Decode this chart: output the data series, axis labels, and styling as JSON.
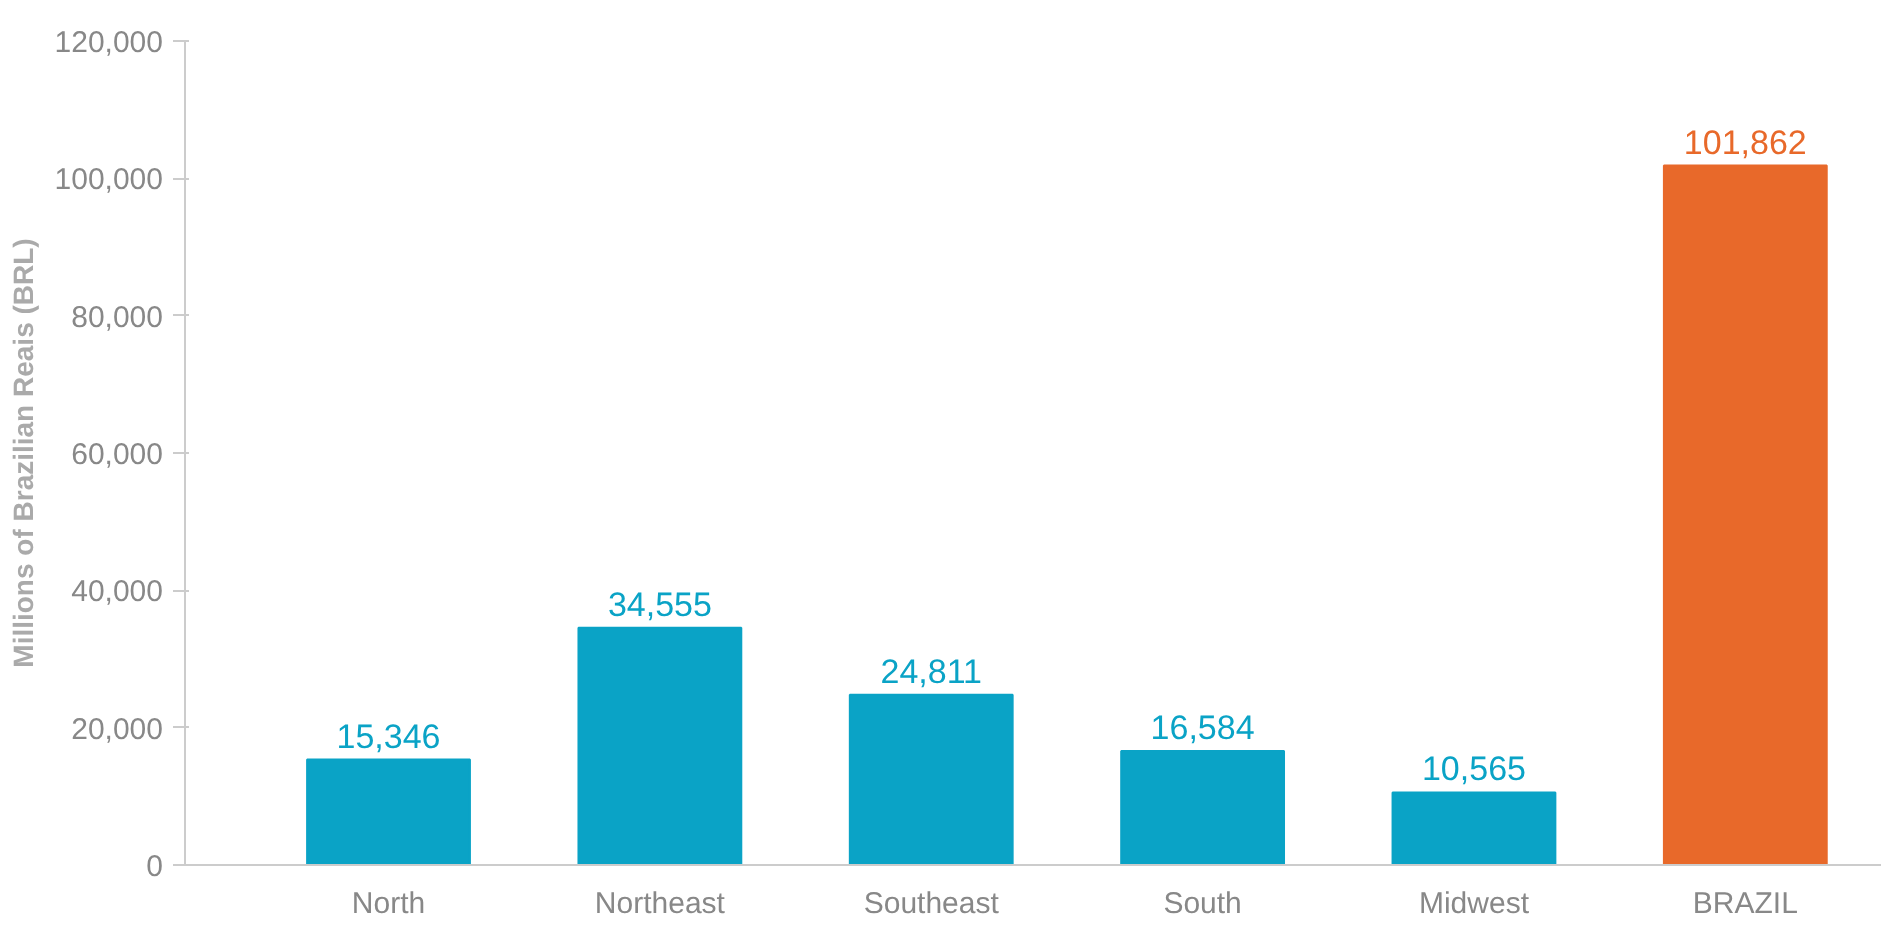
{
  "chart_data": {
    "type": "bar",
    "ylabel": "Millions of Brazilian Reais (BRL)",
    "categories": [
      "North",
      "Northeast",
      "Southeast",
      "South",
      "Midwest",
      "BRAZIL"
    ],
    "values": [
      15346,
      34555,
      24811,
      16584,
      10565,
      101862
    ],
    "colors": [
      "#0aa3c6",
      "#0aa3c6",
      "#0aa3c6",
      "#0aa3c6",
      "#0aa3c6",
      "#e8692a"
    ],
    "ylim": [
      0,
      120000
    ],
    "yticks": [
      {
        "value": 0,
        "label": "0"
      },
      {
        "value": 20000,
        "label": "20,000"
      },
      {
        "value": 40000,
        "label": "40,000"
      },
      {
        "value": 60000,
        "label": "60,000"
      },
      {
        "value": 80000,
        "label": "80,000"
      },
      {
        "value": 100000,
        "label": "100,000"
      },
      {
        "value": 120000,
        "label": "120,000"
      }
    ],
    "value_labels": [
      "15,346",
      "34,555",
      "24,811",
      "16,584",
      "10,565",
      "101,862"
    ],
    "grid": false
  }
}
